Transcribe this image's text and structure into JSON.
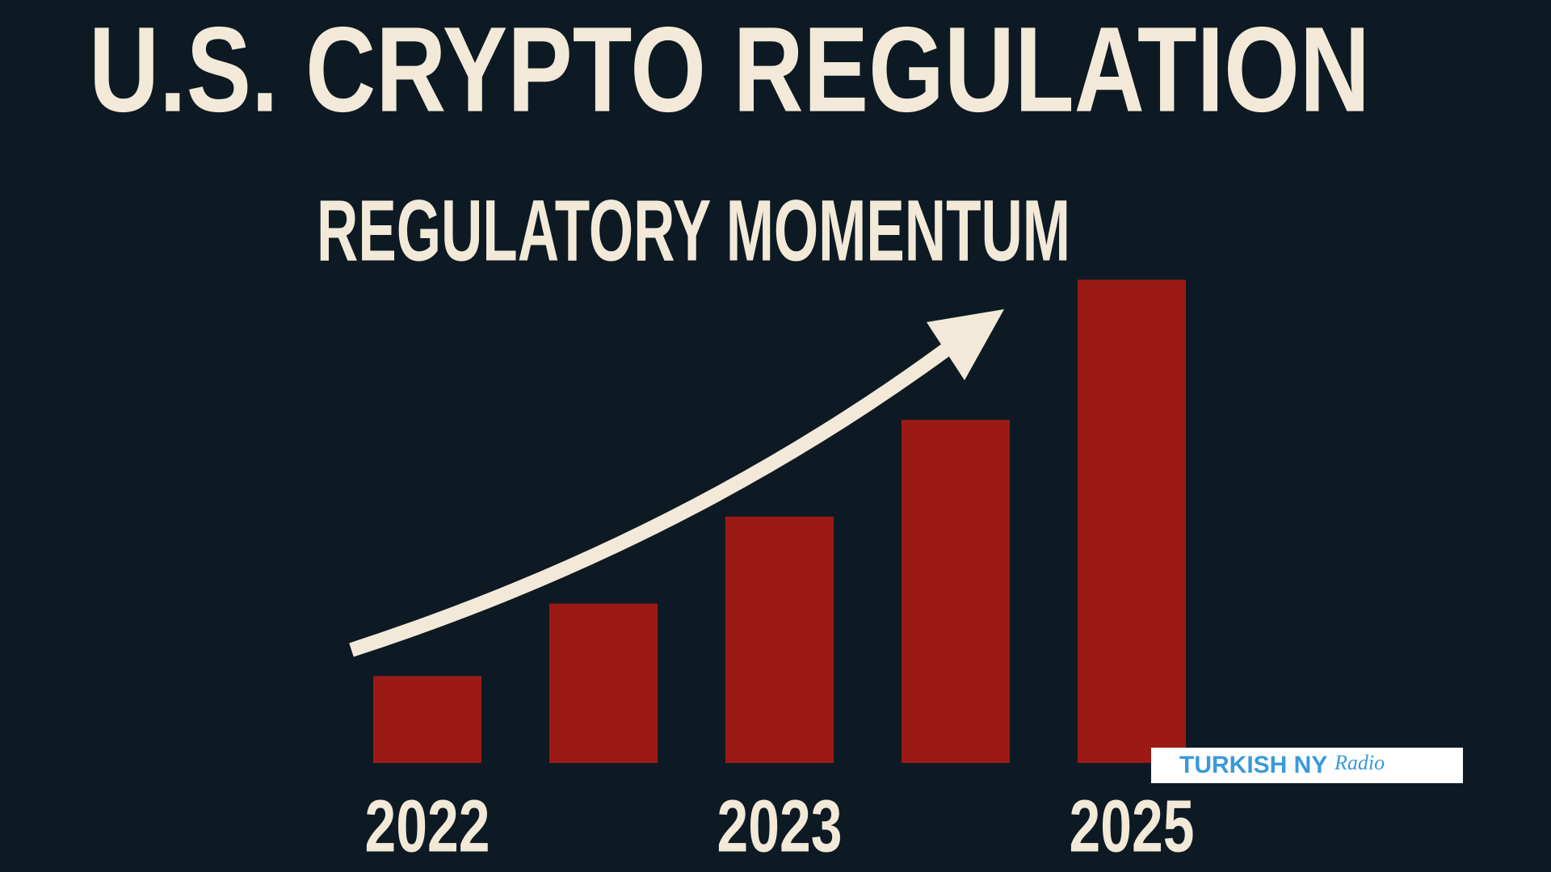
{
  "chart_data": {
    "type": "bar",
    "title": "U.S. CRYPTO REGULATION",
    "subtitle": "REGULATORY MOMENTUM",
    "categories": [
      "2022",
      null,
      "2023",
      null,
      "2025"
    ],
    "values": [
      18,
      33,
      51,
      71,
      100
    ],
    "color": "#9c1a16",
    "ylim": [
      0,
      100
    ],
    "grid": false
  },
  "watermark": {
    "brand": "TURKISH NY",
    "script": "Radio"
  }
}
